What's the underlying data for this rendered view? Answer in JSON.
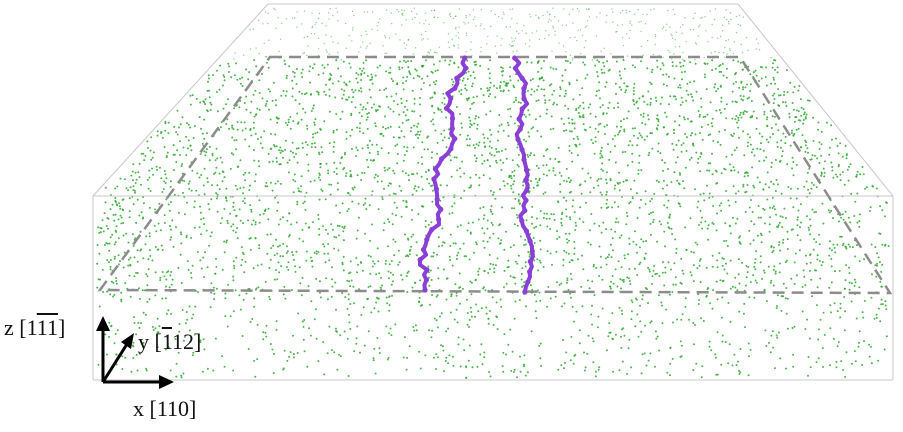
{
  "figure": {
    "colors": {
      "atoms": "#2fa82f",
      "dislocation": "#8a3fd6",
      "box_edge": "#c8c8c8",
      "dashed_plane": "#8c8c8c",
      "axes": "#000000"
    },
    "axes": {
      "z": {
        "name": "z",
        "index_1": "1",
        "index_2": "1",
        "index_3": "1",
        "overlined": [
          false,
          true,
          true
        ]
      },
      "y": {
        "name": "y",
        "index_1": "1",
        "index_2": "1",
        "index_3": "2",
        "overlined": [
          true,
          false,
          false
        ]
      },
      "x": {
        "name": "x",
        "miller": "[110]"
      }
    }
  }
}
